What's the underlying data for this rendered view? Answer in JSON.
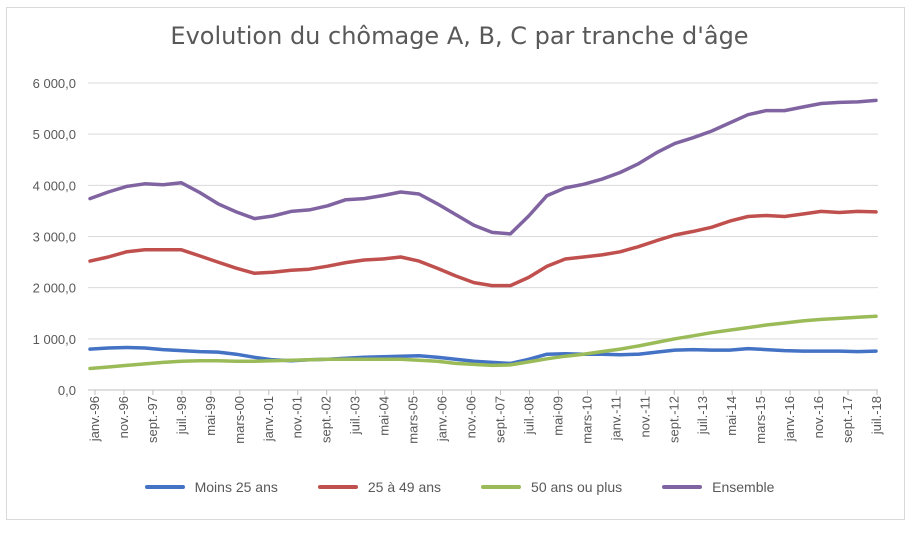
{
  "chart_data": {
    "type": "line",
    "title": "Evolution du chômage A, B, C par tranche d'âge",
    "xlabel": "",
    "ylabel": "",
    "ylim": [
      0,
      6000
    ],
    "y_ticks": [
      "0,0",
      "1 000,0",
      "2 000,0",
      "3 000,0",
      "4 000,0",
      "5 000,0",
      "6 000,0"
    ],
    "x_ticks": [
      "janv.-96",
      "nov.-96",
      "sept.-97",
      "juil.-98",
      "mai-99",
      "mars-00",
      "janv.-01",
      "nov.-01",
      "sept.-02",
      "juil.-03",
      "mai-04",
      "mars-05",
      "janv.-06",
      "nov.-06",
      "sept.-07",
      "juil.-08",
      "mai-09",
      "mars-10",
      "janv.-11",
      "nov.-11",
      "sept.-12",
      "juil.-13",
      "mai-14",
      "mars-15",
      "janv.-16",
      "nov.-16",
      "sept.-17",
      "juil.-18"
    ],
    "grid": true,
    "legend_position": "bottom",
    "series": [
      {
        "name": "Moins 25 ans",
        "color": "#4472c4",
        "values": [
          800,
          820,
          830,
          820,
          790,
          770,
          750,
          740,
          700,
          640,
          590,
          570,
          590,
          600,
          620,
          640,
          650,
          660,
          670,
          640,
          600,
          560,
          540,
          520,
          600,
          700,
          710,
          700,
          700,
          690,
          700,
          740,
          780,
          790,
          780,
          780,
          810,
          790,
          770,
          760,
          760,
          760,
          750,
          760
        ]
      },
      {
        "name": "25 à 49 ans",
        "color": "#c0504d",
        "values": [
          2520,
          2600,
          2700,
          2740,
          2740,
          2740,
          2620,
          2500,
          2380,
          2280,
          2300,
          2340,
          2360,
          2420,
          2490,
          2540,
          2560,
          2600,
          2520,
          2380,
          2230,
          2100,
          2040,
          2040,
          2200,
          2420,
          2560,
          2600,
          2640,
          2700,
          2800,
          2920,
          3030,
          3100,
          3180,
          3300,
          3390,
          3410,
          3390,
          3440,
          3490,
          3470,
          3490,
          3480
        ]
      },
      {
        "name": "50 ans ou plus",
        "color": "#9bbb59",
        "values": [
          420,
          450,
          480,
          510,
          540,
          560,
          570,
          570,
          560,
          560,
          570,
          580,
          590,
          600,
          600,
          600,
          600,
          600,
          580,
          560,
          520,
          500,
          480,
          490,
          550,
          610,
          660,
          700,
          750,
          800,
          860,
          930,
          1000,
          1060,
          1120,
          1170,
          1220,
          1270,
          1310,
          1350,
          1380,
          1400,
          1420,
          1440
        ]
      },
      {
        "name": "Ensemble",
        "color": "#8064a2",
        "values": [
          3740,
          3870,
          3980,
          4030,
          4010,
          4050,
          3860,
          3640,
          3480,
          3350,
          3400,
          3490,
          3520,
          3600,
          3720,
          3740,
          3800,
          3870,
          3830,
          3640,
          3430,
          3220,
          3080,
          3050,
          3400,
          3800,
          3950,
          4020,
          4120,
          4250,
          4420,
          4640,
          4820,
          4930,
          5060,
          5220,
          5380,
          5460,
          5460,
          5530,
          5600,
          5620,
          5630,
          5660
        ]
      }
    ]
  }
}
